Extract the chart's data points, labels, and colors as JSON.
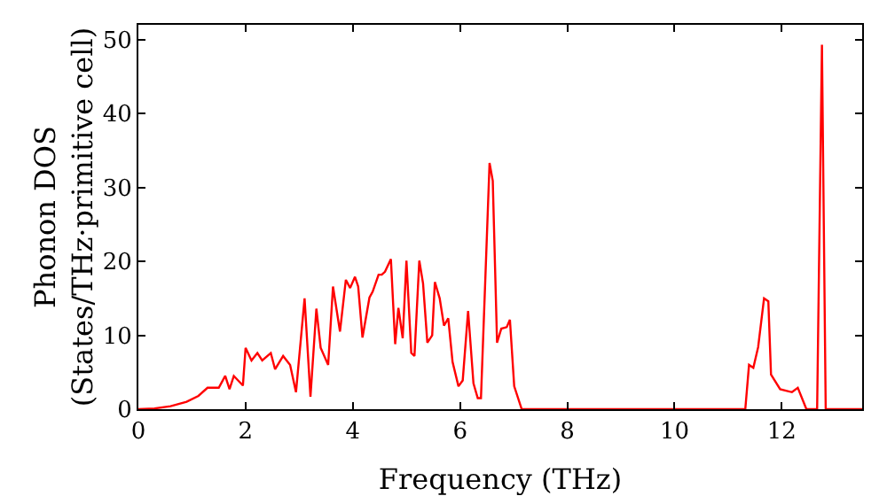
{
  "chart_data": {
    "type": "line",
    "xlabel": "Frequency (THz)",
    "ylabel": "Phonon DOS\n(States/THz·primitive cell)",
    "xlim": [
      0,
      13.5
    ],
    "ylim": [
      0,
      52
    ],
    "xticks": [
      0,
      2,
      4,
      6,
      8,
      10,
      12
    ],
    "yticks": [
      0,
      10,
      20,
      30,
      40,
      50
    ],
    "grid": false,
    "legend": false,
    "marker": "none",
    "line_style": "solid",
    "series": [
      {
        "color": "#ff0000",
        "x": [
          0,
          0.3,
          0.6,
          0.9,
          1.12,
          1.29,
          1.5,
          1.62,
          1.7,
          1.78,
          1.95,
          2.0,
          2.11,
          2.22,
          2.31,
          2.47,
          2.55,
          2.7,
          2.83,
          2.94,
          3.1,
          3.21,
          3.32,
          3.4,
          3.54,
          3.63,
          3.76,
          3.87,
          3.95,
          4.04,
          4.1,
          4.18,
          4.31,
          4.37,
          4.48,
          4.54,
          4.6,
          4.71,
          4.79,
          4.85,
          4.93,
          5.0,
          5.09,
          5.15,
          5.24,
          5.31,
          5.39,
          5.48,
          5.53,
          5.62,
          5.7,
          5.78,
          5.86,
          5.97,
          6.05,
          6.15,
          6.25,
          6.33,
          6.39,
          6.55,
          6.61,
          6.69,
          6.77,
          6.87,
          6.93,
          7.01,
          7.15,
          11.32,
          11.39,
          11.47,
          11.56,
          11.67,
          11.75,
          11.8,
          11.97,
          12.19,
          12.3,
          12.46,
          12.66,
          12.75,
          12.82,
          13.5
        ],
        "values": [
          0,
          0.1,
          0.4,
          1.0,
          1.8,
          2.9,
          2.9,
          4.5,
          2.7,
          4.5,
          3.2,
          8.3,
          6.6,
          7.6,
          6.6,
          7.6,
          5.4,
          7.2,
          6,
          2.3,
          15,
          1.7,
          13.6,
          8.3,
          6,
          16.6,
          10.5,
          17.5,
          16.4,
          17.9,
          16.6,
          9.7,
          15.1,
          15.9,
          18.2,
          18.2,
          18.6,
          20.3,
          8.8,
          13.7,
          9.6,
          20.1,
          7.6,
          7.2,
          20.1,
          17,
          9,
          10,
          17.2,
          15,
          11.3,
          12.3,
          6.4,
          3.1,
          3.9,
          13.3,
          3.5,
          1.5,
          1.5,
          33.3,
          30.9,
          9,
          10.9,
          11.1,
          12.1,
          3.1,
          0,
          0,
          6,
          5.6,
          8.4,
          15,
          14.6,
          4.7,
          2.7,
          2.3,
          2.9,
          0,
          0,
          49.3,
          0,
          0
        ]
      }
    ]
  }
}
